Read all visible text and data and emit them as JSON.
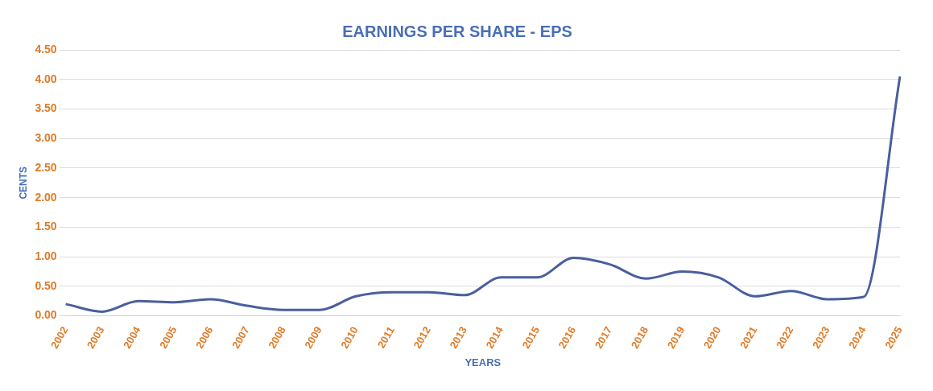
{
  "chart_data": {
    "type": "line",
    "title": "EARNINGS PER SHARE - EPS",
    "xlabel": "YEARS",
    "ylabel": "CENTS",
    "categories": [
      "2002",
      "2003",
      "2004",
      "2005",
      "2006",
      "2007",
      "2008",
      "2009",
      "2010",
      "2011",
      "2012",
      "2013",
      "2014",
      "2015",
      "2016",
      "2017",
      "2018",
      "2019",
      "2020",
      "2021",
      "2022",
      "2023",
      "2024",
      "2025"
    ],
    "series": [
      {
        "color": "#4a5f9e",
        "values": [
          0.2,
          0.07,
          0.25,
          0.23,
          0.28,
          0.17,
          0.1,
          0.1,
          0.33,
          0.4,
          0.4,
          0.35,
          0.65,
          0.65,
          0.98,
          0.87,
          0.63,
          0.75,
          0.65,
          0.33,
          0.42,
          0.28,
          0.32,
          4.05
        ]
      }
    ],
    "ylim": [
      0,
      4.5
    ],
    "yticks": [
      {
        "value": 0,
        "label": "0.00"
      },
      {
        "value": 0.5,
        "label": "0.50"
      },
      {
        "value": 1,
        "label": "1.00"
      },
      {
        "value": 1.5,
        "label": "1.50"
      },
      {
        "value": 2,
        "label": "2.00"
      },
      {
        "value": 2.5,
        "label": "2.50"
      },
      {
        "value": 3,
        "label": "3.00"
      },
      {
        "value": 3.5,
        "label": "3.50"
      },
      {
        "value": 4,
        "label": "4.00"
      },
      {
        "value": 4.5,
        "label": "4.50"
      }
    ],
    "grid": "y",
    "marker": "none",
    "line_style": "solid",
    "legend": false
  }
}
